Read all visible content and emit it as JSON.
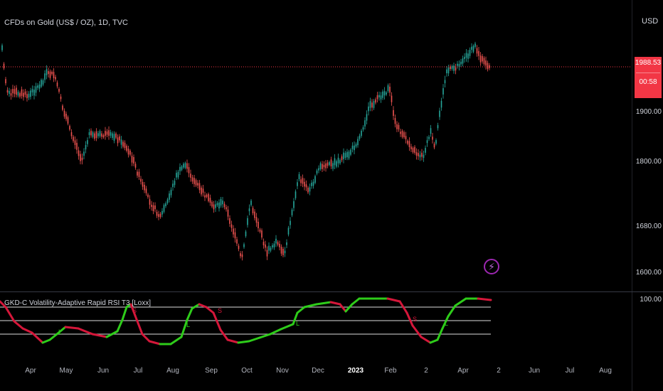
{
  "header": {
    "symbol_title": "CFDs on Gold (US$ / OZ), 1D, TVC",
    "currency": "USD"
  },
  "price_axis": {
    "labels": [
      "1900.00",
      "1800.00",
      "1680.00",
      "1600.00"
    ],
    "current_price": "1988.53",
    "countdown": "00:58"
  },
  "indicator": {
    "title": "GKD-C Volatility-Adaptive Rapid RSI T3 [Loxx]",
    "axis_label": "100.00",
    "signal_long": "L",
    "signal_short": "S"
  },
  "time_axis": {
    "months": [
      "Apr",
      "May",
      "Jun",
      "Jul",
      "Aug",
      "Sep",
      "Oct",
      "Nov",
      "Dec",
      "2023",
      "Feb",
      "2",
      "Apr",
      "2",
      "Jun",
      "Jul",
      "Aug"
    ],
    "bold_label": "2023"
  },
  "colors": {
    "up": "#26a69a",
    "down": "#ef5350",
    "rsi_up": "#2ecc1a",
    "rsi_down": "#d5173a",
    "price_line": "#f23645"
  }
}
